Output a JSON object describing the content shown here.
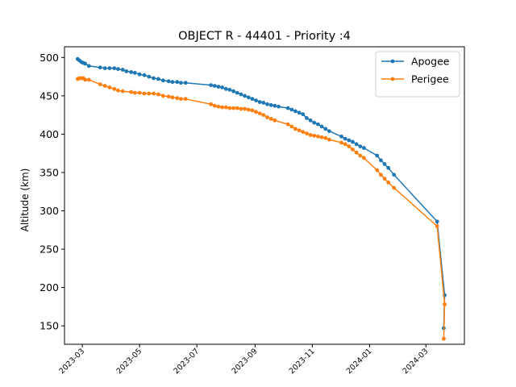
{
  "chart_data": {
    "type": "line",
    "title": "OBJECT R - 44401 - Priority :4",
    "xlabel": "",
    "ylabel": "Altitude (km)",
    "xlim": [
      "2023-02-10",
      "2024-04-11"
    ],
    "ylim": [
      126,
      514
    ],
    "x_ticks": [
      "2023-03",
      "2023-05",
      "2023-07",
      "2023-09",
      "2023-11",
      "2024-01",
      "2024-03"
    ],
    "y_ticks": [
      150,
      200,
      250,
      300,
      350,
      400,
      450,
      500
    ],
    "legend": {
      "position": "top-right"
    },
    "grid": false,
    "series": [
      {
        "name": "Apogee",
        "color": "#1f77b4",
        "points": [
          [
            "2023-02-24",
            498
          ],
          [
            "2023-02-26",
            496
          ],
          [
            "2023-02-28",
            494
          ],
          [
            "2023-03-02",
            493
          ],
          [
            "2023-03-04",
            492
          ],
          [
            "2023-03-08",
            489
          ],
          [
            "2023-03-20",
            487
          ],
          [
            "2023-03-25",
            486
          ],
          [
            "2023-03-30",
            486
          ],
          [
            "2023-04-04",
            486
          ],
          [
            "2023-04-08",
            485
          ],
          [
            "2023-04-13",
            484
          ],
          [
            "2023-04-17",
            482
          ],
          [
            "2023-04-22",
            481
          ],
          [
            "2023-04-26",
            480
          ],
          [
            "2023-05-01",
            478
          ],
          [
            "2023-05-06",
            477
          ],
          [
            "2023-05-11",
            475
          ],
          [
            "2023-05-16",
            473
          ],
          [
            "2023-05-21",
            472
          ],
          [
            "2023-05-26",
            470
          ],
          [
            "2023-06-01",
            469
          ],
          [
            "2023-06-05",
            468
          ],
          [
            "2023-06-10",
            468
          ],
          [
            "2023-06-14",
            467
          ],
          [
            "2023-06-19",
            467
          ],
          [
            "2023-07-16",
            464
          ],
          [
            "2023-07-20",
            463
          ],
          [
            "2023-07-24",
            462
          ],
          [
            "2023-07-28",
            461
          ],
          [
            "2023-08-01",
            459
          ],
          [
            "2023-08-05",
            458
          ],
          [
            "2023-08-09",
            456
          ],
          [
            "2023-08-13",
            454
          ],
          [
            "2023-08-17",
            452
          ],
          [
            "2023-08-21",
            450
          ],
          [
            "2023-08-25",
            448
          ],
          [
            "2023-08-29",
            446
          ],
          [
            "2023-09-02",
            444
          ],
          [
            "2023-09-06",
            442
          ],
          [
            "2023-09-10",
            441
          ],
          [
            "2023-09-14",
            439
          ],
          [
            "2023-09-18",
            438
          ],
          [
            "2023-09-22",
            437
          ],
          [
            "2023-09-26",
            436
          ],
          [
            "2023-10-06",
            434
          ],
          [
            "2023-10-10",
            432
          ],
          [
            "2023-10-14",
            430
          ],
          [
            "2023-10-18",
            428
          ],
          [
            "2023-10-22",
            426
          ],
          [
            "2023-10-26",
            421
          ],
          [
            "2023-10-30",
            418
          ],
          [
            "2023-11-03",
            415
          ],
          [
            "2023-11-07",
            413
          ],
          [
            "2023-11-11",
            410
          ],
          [
            "2023-11-15",
            407
          ],
          [
            "2023-11-19",
            404
          ],
          [
            "2023-12-02",
            397
          ],
          [
            "2023-12-06",
            394
          ],
          [
            "2023-12-10",
            392
          ],
          [
            "2023-12-14",
            390
          ],
          [
            "2023-12-18",
            387
          ],
          [
            "2023-12-22",
            384
          ],
          [
            "2023-12-26",
            382
          ],
          [
            "2024-01-09",
            372
          ],
          [
            "2024-01-13",
            366
          ],
          [
            "2024-01-17",
            361
          ],
          [
            "2024-01-21",
            356
          ],
          [
            "2024-01-27",
            347
          ],
          [
            "2024-03-13",
            286
          ],
          [
            "2024-03-21",
            190
          ],
          [
            "2024-03-20",
            147
          ]
        ]
      },
      {
        "name": "Perigee",
        "color": "#ff7f0e",
        "points": [
          [
            "2023-02-24",
            472
          ],
          [
            "2023-02-26",
            473
          ],
          [
            "2023-02-28",
            473
          ],
          [
            "2023-03-02",
            473
          ],
          [
            "2023-03-04",
            471
          ],
          [
            "2023-03-08",
            471
          ],
          [
            "2023-03-20",
            465
          ],
          [
            "2023-03-25",
            463
          ],
          [
            "2023-03-30",
            461
          ],
          [
            "2023-04-04",
            459
          ],
          [
            "2023-04-08",
            457
          ],
          [
            "2023-04-13",
            456
          ],
          [
            "2023-04-22",
            455
          ],
          [
            "2023-04-26",
            454
          ],
          [
            "2023-05-01",
            454
          ],
          [
            "2023-05-06",
            453
          ],
          [
            "2023-05-11",
            453
          ],
          [
            "2023-05-16",
            453
          ],
          [
            "2023-05-21",
            452
          ],
          [
            "2023-05-26",
            450
          ],
          [
            "2023-06-01",
            449
          ],
          [
            "2023-06-05",
            448
          ],
          [
            "2023-06-10",
            447
          ],
          [
            "2023-06-14",
            446
          ],
          [
            "2023-06-19",
            446
          ],
          [
            "2023-07-16",
            439
          ],
          [
            "2023-07-20",
            437
          ],
          [
            "2023-07-24",
            436
          ],
          [
            "2023-07-28",
            435
          ],
          [
            "2023-08-01",
            435
          ],
          [
            "2023-08-05",
            434
          ],
          [
            "2023-08-09",
            434
          ],
          [
            "2023-08-13",
            434
          ],
          [
            "2023-08-17",
            433
          ],
          [
            "2023-08-21",
            433
          ],
          [
            "2023-08-25",
            432
          ],
          [
            "2023-08-29",
            431
          ],
          [
            "2023-09-02",
            429
          ],
          [
            "2023-09-06",
            427
          ],
          [
            "2023-09-10",
            425
          ],
          [
            "2023-09-14",
            422
          ],
          [
            "2023-09-18",
            420
          ],
          [
            "2023-09-22",
            418
          ],
          [
            "2023-10-06",
            413
          ],
          [
            "2023-10-10",
            410
          ],
          [
            "2023-10-14",
            407
          ],
          [
            "2023-10-18",
            405
          ],
          [
            "2023-10-22",
            403
          ],
          [
            "2023-10-26",
            401
          ],
          [
            "2023-10-30",
            399
          ],
          [
            "2023-11-03",
            398
          ],
          [
            "2023-11-07",
            397
          ],
          [
            "2023-11-11",
            396
          ],
          [
            "2023-11-15",
            395
          ],
          [
            "2023-11-19",
            393
          ],
          [
            "2023-12-02",
            389
          ],
          [
            "2023-12-06",
            387
          ],
          [
            "2023-12-10",
            384
          ],
          [
            "2023-12-14",
            380
          ],
          [
            "2023-12-18",
            376
          ],
          [
            "2023-12-22",
            372
          ],
          [
            "2023-12-26",
            369
          ],
          [
            "2024-01-09",
            353
          ],
          [
            "2024-01-13",
            347
          ],
          [
            "2024-01-17",
            342
          ],
          [
            "2024-01-21",
            337
          ],
          [
            "2024-01-27",
            330
          ],
          [
            "2024-03-13",
            280
          ],
          [
            "2024-03-21",
            178
          ],
          [
            "2024-03-20",
            133
          ]
        ]
      }
    ]
  }
}
